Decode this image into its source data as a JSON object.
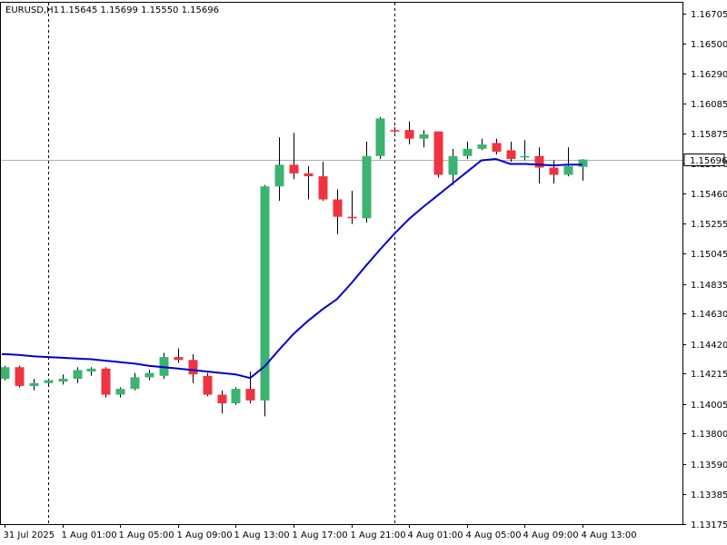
{
  "header": {
    "symbol": "EURUSD,H1",
    "ohlc": "1.15645 1.15699 1.15550 1.15696"
  },
  "colors": {
    "bull": "#3cb371",
    "bear": "#ef3340",
    "wick": "#000000",
    "ma_line": "#0000cd",
    "price_line": "#b0b0b0",
    "background": "#ffffff",
    "axis": "#000000"
  },
  "current_price": {
    "value": 1.15696,
    "label": "1.15696"
  },
  "chart_data": {
    "type": "candlestick",
    "title": "",
    "xlabel": "",
    "ylabel": "",
    "ylim": [
      1.13175,
      1.1678
    ],
    "grid": false,
    "y_ticks": [
      {
        "value": 1.16705,
        "label": "1.16705"
      },
      {
        "value": 1.165,
        "label": "1.16500"
      },
      {
        "value": 1.1629,
        "label": "1.16290"
      },
      {
        "value": 1.16085,
        "label": "1.16085"
      },
      {
        "value": 1.15875,
        "label": "1.15875"
      },
      {
        "value": 1.1567,
        "label": "1.15670"
      },
      {
        "value": 1.1546,
        "label": "1.15460"
      },
      {
        "value": 1.15255,
        "label": "1.15255"
      },
      {
        "value": 1.15045,
        "label": "1.15045"
      },
      {
        "value": 1.14835,
        "label": "1.14835"
      },
      {
        "value": 1.1463,
        "label": "1.14630"
      },
      {
        "value": 1.1442,
        "label": "1.14420"
      },
      {
        "value": 1.14215,
        "label": "1.14215"
      },
      {
        "value": 1.14005,
        "label": "1.14005"
      },
      {
        "value": 1.138,
        "label": "1.13800"
      },
      {
        "value": 1.1359,
        "label": "1.13590"
      },
      {
        "value": 1.13385,
        "label": "1.13385"
      },
      {
        "value": 1.13175,
        "label": "1.13175"
      }
    ],
    "x_ticks": [
      {
        "index": 0,
        "label": "31 Jul 2025"
      },
      {
        "index": 4,
        "label": "1 Aug 01:00"
      },
      {
        "index": 8,
        "label": "1 Aug 05:00"
      },
      {
        "index": 12,
        "label": "1 Aug 09:00"
      },
      {
        "index": 16,
        "label": "1 Aug 13:00"
      },
      {
        "index": 20,
        "label": "1 Aug 17:00"
      },
      {
        "index": 24,
        "label": "1 Aug 21:00"
      },
      {
        "index": 28,
        "label": "4 Aug 01:00"
      },
      {
        "index": 32,
        "label": "4 Aug 05:00"
      },
      {
        "index": 36,
        "label": "4 Aug 09:00"
      },
      {
        "index": 40,
        "label": "4 Aug 13:00"
      }
    ],
    "period_separators": [
      3,
      27
    ],
    "candles": [
      {
        "o": 1.1418,
        "h": 1.1427,
        "l": 1.1417,
        "c": 1.1426
      },
      {
        "o": 1.1426,
        "h": 1.1427,
        "l": 1.1412,
        "c": 1.1413
      },
      {
        "o": 1.1413,
        "h": 1.1418,
        "l": 1.141,
        "c": 1.1415
      },
      {
        "o": 1.1415,
        "h": 1.1418,
        "l": 1.1413,
        "c": 1.1417
      },
      {
        "o": 1.1416,
        "h": 1.1421,
        "l": 1.1414,
        "c": 1.1418
      },
      {
        "o": 1.1418,
        "h": 1.1426,
        "l": 1.1415,
        "c": 1.1424
      },
      {
        "o": 1.1423,
        "h": 1.1426,
        "l": 1.142,
        "c": 1.1425
      },
      {
        "o": 1.1425,
        "h": 1.1426,
        "l": 1.1405,
        "c": 1.1407
      },
      {
        "o": 1.1407,
        "h": 1.1412,
        "l": 1.1405,
        "c": 1.1411
      },
      {
        "o": 1.1411,
        "h": 1.1422,
        "l": 1.141,
        "c": 1.1419
      },
      {
        "o": 1.1419,
        "h": 1.1424,
        "l": 1.1417,
        "c": 1.1422
      },
      {
        "o": 1.142,
        "h": 1.1436,
        "l": 1.1418,
        "c": 1.1433
      },
      {
        "o": 1.1433,
        "h": 1.1439,
        "l": 1.1429,
        "c": 1.1431
      },
      {
        "o": 1.1431,
        "h": 1.1435,
        "l": 1.1415,
        "c": 1.1421
      },
      {
        "o": 1.142,
        "h": 1.1422,
        "l": 1.1406,
        "c": 1.1407
      },
      {
        "o": 1.1407,
        "h": 1.141,
        "l": 1.1394,
        "c": 1.1401
      },
      {
        "o": 1.1401,
        "h": 1.1412,
        "l": 1.14,
        "c": 1.1411
      },
      {
        "o": 1.1411,
        "h": 1.1423,
        "l": 1.1401,
        "c": 1.1403
      },
      {
        "o": 1.1403,
        "h": 1.1552,
        "l": 1.1392,
        "c": 1.1551
      },
      {
        "o": 1.1551,
        "h": 1.1585,
        "l": 1.1541,
        "c": 1.1566
      },
      {
        "o": 1.1566,
        "h": 1.1588,
        "l": 1.1556,
        "c": 1.156
      },
      {
        "o": 1.156,
        "h": 1.1565,
        "l": 1.1542,
        "c": 1.1558
      },
      {
        "o": 1.1558,
        "h": 1.1568,
        "l": 1.1541,
        "c": 1.1542
      },
      {
        "o": 1.1542,
        "h": 1.1549,
        "l": 1.1518,
        "c": 1.153
      },
      {
        "o": 1.153,
        "h": 1.1548,
        "l": 1.1525,
        "c": 1.1529
      },
      {
        "o": 1.1529,
        "h": 1.1582,
        "l": 1.1526,
        "c": 1.1572
      },
      {
        "o": 1.1572,
        "h": 1.1599,
        "l": 1.157,
        "c": 1.1598
      },
      {
        "o": 1.159,
        "h": 1.1592,
        "l": 1.1588,
        "c": 1.1589
      },
      {
        "o": 1.159,
        "h": 1.1596,
        "l": 1.158,
        "c": 1.1584
      },
      {
        "o": 1.1584,
        "h": 1.159,
        "l": 1.1578,
        "c": 1.1587
      },
      {
        "o": 1.1589,
        "h": 1.1589,
        "l": 1.1557,
        "c": 1.1559
      },
      {
        "o": 1.1559,
        "h": 1.1577,
        "l": 1.1552,
        "c": 1.1572
      },
      {
        "o": 1.1572,
        "h": 1.1582,
        "l": 1.157,
        "c": 1.1577
      },
      {
        "o": 1.1577,
        "h": 1.1584,
        "l": 1.1576,
        "c": 1.158
      },
      {
        "o": 1.1581,
        "h": 1.1584,
        "l": 1.1573,
        "c": 1.1575
      },
      {
        "o": 1.1576,
        "h": 1.1582,
        "l": 1.1568,
        "c": 1.157
      },
      {
        "o": 1.1571,
        "h": 1.1583,
        "l": 1.1569,
        "c": 1.1572
      },
      {
        "o": 1.1572,
        "h": 1.1578,
        "l": 1.1553,
        "c": 1.1564
      },
      {
        "o": 1.1564,
        "h": 1.1569,
        "l": 1.1553,
        "c": 1.1559
      },
      {
        "o": 1.1559,
        "h": 1.1578,
        "l": 1.1558,
        "c": 1.1565
      },
      {
        "o": 1.15645,
        "h": 1.15699,
        "l": 1.1555,
        "c": 1.15696
      }
    ],
    "moving_average": [
      1.1435,
      1.14345,
      1.14335,
      1.1433,
      1.14325,
      1.1432,
      1.14315,
      1.14305,
      1.14295,
      1.14285,
      1.1427,
      1.1426,
      1.1425,
      1.1424,
      1.1423,
      1.1422,
      1.1421,
      1.14185,
      1.14265,
      1.1438,
      1.1449,
      1.1458,
      1.1466,
      1.1473,
      1.1484,
      1.1496,
      1.15075,
      1.15185,
      1.15285,
      1.1537,
      1.1545,
      1.1553,
      1.1561,
      1.1569,
      1.157,
      1.15665,
      1.15665,
      1.1566,
      1.15655,
      1.1566,
      1.1566
    ]
  }
}
